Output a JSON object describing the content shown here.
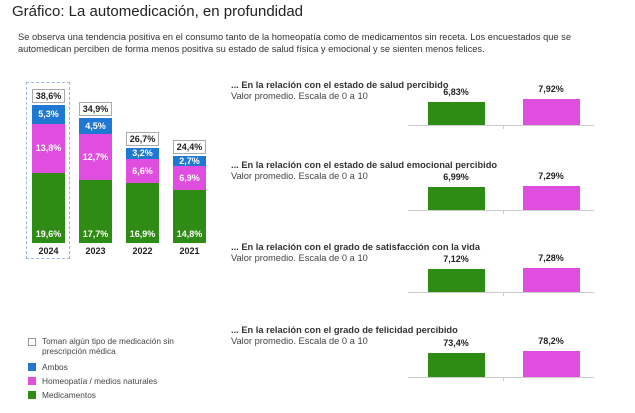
{
  "title": "Gráfico: La automedicación, en profundidad",
  "intro": "Se observa una tendencia positiva en el consumo tanto de la homeopatía como de medicamentos sin receta. Los encuestados que se automedican perciben de forma menos positiva su estado de salud física y emocional y se sienten menos felices.",
  "colors": {
    "medicamentos": "#2e8b14",
    "homeopatia": "#e04ee0",
    "ambos": "#1f78d1"
  },
  "legend": [
    "Toman algún tipo de medicación sin prescripción médica",
    "Ambos",
    "Homeopatía / medios naturales",
    "Medicamentos"
  ],
  "chart_data": [
    {
      "type": "bar",
      "stacked": true,
      "categories": [
        "2024",
        "2023",
        "2022",
        "2021"
      ],
      "series": [
        {
          "name": "Medicamentos",
          "values": [
            19.6,
            17.7,
            16.9,
            14.8
          ],
          "labels": [
            "19,6%",
            "17,7%",
            "16,9%",
            "14,8%"
          ]
        },
        {
          "name": "Homeopatía / medios naturales",
          "values": [
            13.8,
            12.7,
            6.6,
            6.9
          ],
          "labels": [
            "13,8%",
            "12,7%",
            "6,6%",
            "6,9%"
          ]
        },
        {
          "name": "Ambos",
          "values": [
            5.3,
            4.5,
            3.2,
            2.7
          ],
          "labels": [
            "5,3%",
            "4,5%",
            "3,2%",
            "2,7%"
          ]
        }
      ],
      "totals": [
        38.6,
        34.9,
        26.7,
        24.4
      ],
      "total_labels": [
        "38,6%",
        "34,9%",
        "26,7%",
        "24,4%"
      ],
      "total_name": "Toman algún tipo de medicación sin prescripción médica",
      "highlight": "2024"
    },
    {
      "type": "bar",
      "title": "... En la relación con el estado de salud percibido",
      "subtitle": "Valor promedio. Escala de 0 a 10",
      "values": [
        6.83,
        7.92
      ],
      "labels": [
        "6,83%",
        "7,92%"
      ]
    },
    {
      "type": "bar",
      "title": "... En la relación con el estado de salud emocional percibido",
      "subtitle": "Valor promedio. Escala de 0 a 10",
      "values": [
        6.99,
        7.29
      ],
      "labels": [
        "6,99%",
        "7,29%"
      ]
    },
    {
      "type": "bar",
      "title": "... En la relación con el grado de satisfacción con la vida",
      "subtitle": "Valor promedio. Escala de 0 a 10",
      "values": [
        7.12,
        7.28
      ],
      "labels": [
        "7,12%",
        "7,28%"
      ]
    },
    {
      "type": "bar",
      "title": "... En la relación con el grado de felicidad percibido",
      "subtitle": "Valor promedio. Escala de 0 a 10",
      "values": [
        73.4,
        78.2
      ],
      "labels": [
        "73,4%",
        "78,2%"
      ]
    }
  ]
}
